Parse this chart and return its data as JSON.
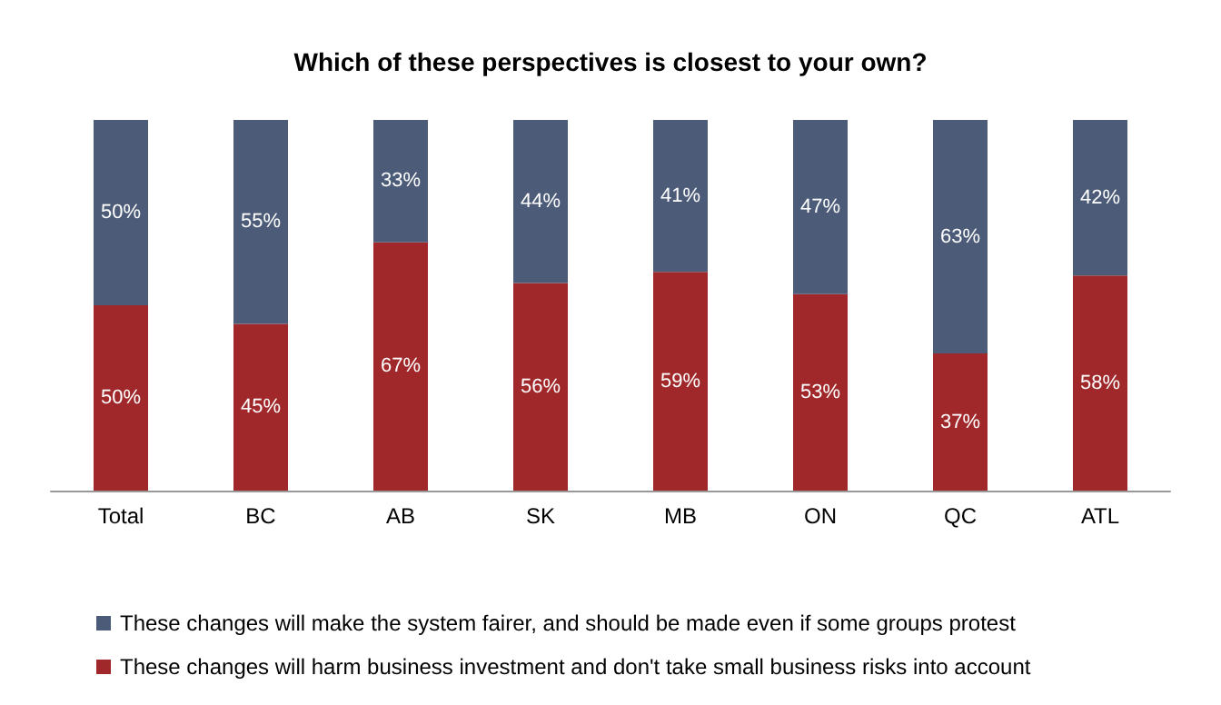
{
  "chart_data": {
    "type": "bar",
    "title": "Which of these perspectives is closest to your own?",
    "categories": [
      "Total",
      "BC",
      "AB",
      "SK",
      "MB",
      "ON",
      "QC",
      "ATL"
    ],
    "stacked": true,
    "legend": "bottom",
    "series": [
      {
        "name": "These changes will harm business investment and don't take small business risks into account",
        "color": "#a0282a",
        "values": [
          50,
          45,
          67,
          56,
          59,
          53,
          37,
          58
        ],
        "value_labels": [
          "50%",
          "45%",
          "67%",
          "56%",
          "59%",
          "53%",
          "37%",
          "58%"
        ]
      },
      {
        "name": "These changes will make the system fairer, and should be made even if some groups protest",
        "color": "#4b5b78",
        "values": [
          50,
          55,
          33,
          44,
          41,
          47,
          63,
          42
        ],
        "value_labels": [
          "50%",
          "55%",
          "33%",
          "44%",
          "41%",
          "47%",
          "63%",
          "42%"
        ]
      }
    ]
  }
}
